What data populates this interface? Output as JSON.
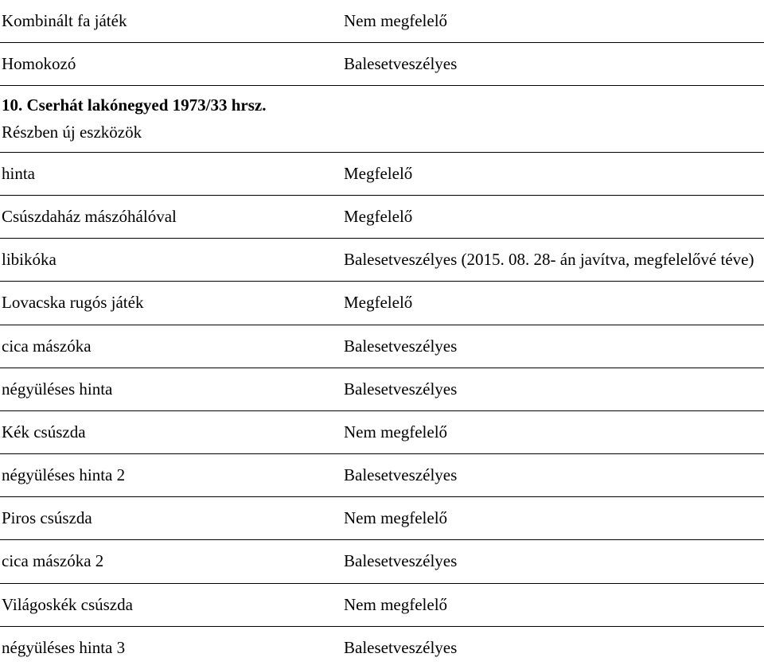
{
  "fontFamily": "Times New Roman",
  "fontSizePt": 16,
  "colors": {
    "text": "#000000",
    "background": "#ffffff",
    "border": "#000000"
  },
  "topRows": [
    {
      "left": "Kombinált fa játék",
      "right": "Nem megfelelő"
    },
    {
      "left": "Homokozó",
      "right": "Balesetveszélyes"
    }
  ],
  "section": {
    "title": "10. Cserhát lakónegyed 1973/33 hrsz.",
    "subtitle": "Részben új eszközök"
  },
  "bottomRows": [
    {
      "left": "hinta",
      "right": "Megfelelő"
    },
    {
      "left": "Csúszdaház mászóhálóval",
      "right": "Megfelelő"
    },
    {
      "left": "libikóka",
      "right": "Balesetveszélyes (2015. 08. 28- án javítva, megfelelővé téve)"
    },
    {
      "left": "Lovacska rugós játék",
      "right": "Megfelelő"
    },
    {
      "left": "cica mászóka",
      "right": "Balesetveszélyes"
    },
    {
      "left": "négyüléses hinta",
      "right": "Balesetveszélyes"
    },
    {
      "left": "Kék csúszda",
      "right": "Nem megfelelő"
    },
    {
      "left": "négyüléses hinta 2",
      "right": "Balesetveszélyes"
    },
    {
      "left": "Piros csúszda",
      "right": "Nem megfelelő"
    },
    {
      "left": "cica mászóka 2",
      "right": "Balesetveszélyes"
    },
    {
      "left": "Világoskék csúszda",
      "right": "Nem megfelelő"
    },
    {
      "left": "négyüléses hinta 3",
      "right": "Balesetveszélyes"
    }
  ]
}
